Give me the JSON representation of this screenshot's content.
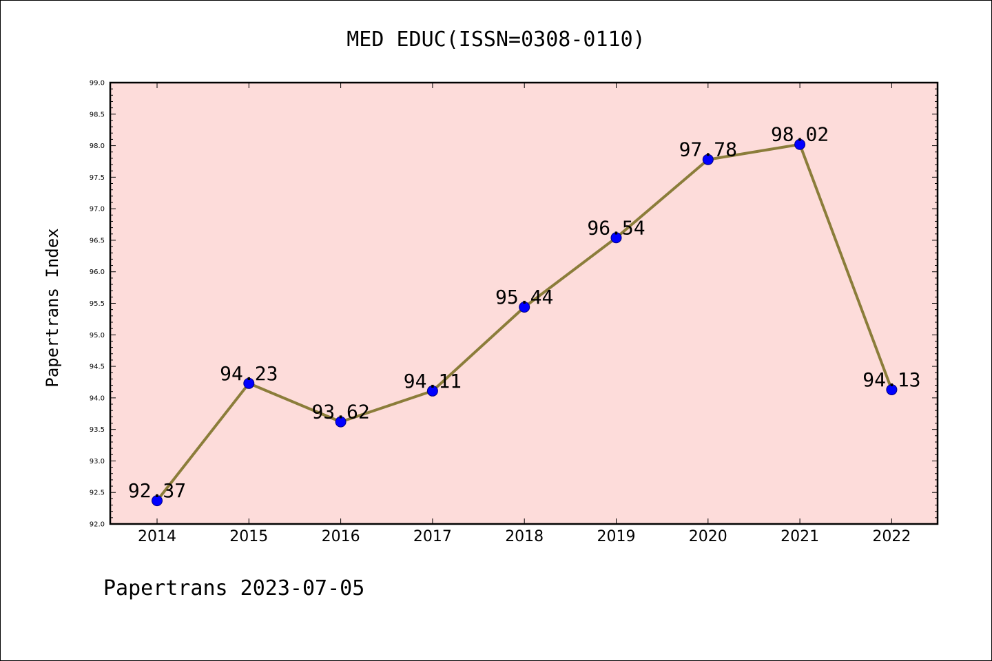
{
  "chart_data": {
    "type": "line",
    "title": "MED EDUC(ISSN=0308-0110)",
    "ylabel": "Papertrans Index",
    "xlabel": "",
    "footer": "Papertrans 2023-07-05",
    "categories": [
      "2014",
      "2015",
      "2016",
      "2017",
      "2018",
      "2019",
      "2020",
      "2021",
      "2022"
    ],
    "values": [
      92.37,
      94.23,
      93.62,
      94.11,
      95.44,
      96.54,
      97.78,
      98.02,
      94.13
    ],
    "data_labels": [
      "92.37",
      "94.23",
      "93.62",
      "94.11",
      "95.44",
      "96.54",
      "97.78",
      "98.02",
      "94.13"
    ],
    "ylim": [
      92.0,
      99.0
    ],
    "yticks": [
      "92.0",
      "92.5",
      "93.0",
      "93.5",
      "94.0",
      "94.5",
      "95.0",
      "95.5",
      "96.0",
      "96.5",
      "97.0",
      "97.5",
      "98.0",
      "98.5",
      "99.0"
    ],
    "grid": false,
    "colors": {
      "plot_background": "#fddcda",
      "line": "#8b7d3a",
      "marker_fill": "#0000ff",
      "marker_edge": "#000080"
    }
  }
}
